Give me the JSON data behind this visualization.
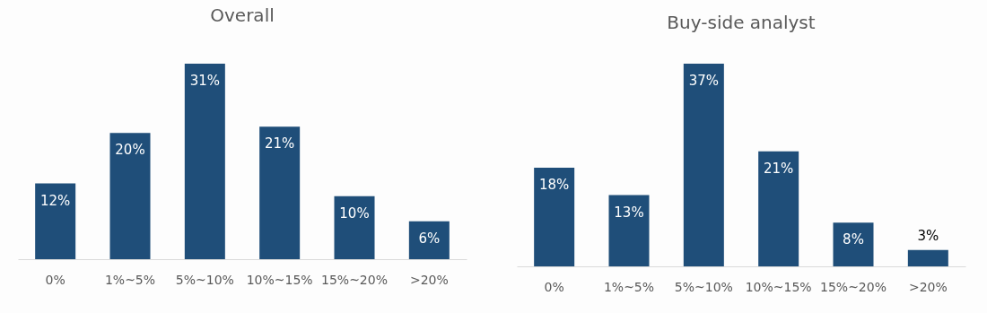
{
  "chart_data": [
    {
      "type": "bar",
      "title": "Overall",
      "categories": [
        "0%",
        "1%~5%",
        "5%~10%",
        "10%~15%",
        "15%~20%",
        ">20%"
      ],
      "values": [
        12,
        20,
        31,
        21,
        10,
        6
      ],
      "color": "#1f4e79",
      "value_labels": [
        "12%",
        "20%",
        "31%",
        "21%",
        "10%",
        "6%"
      ]
    },
    {
      "type": "bar",
      "title": "Buy-side analyst",
      "categories": [
        "0%",
        "1%~5%",
        "5%~10%",
        "10%~15%",
        "15%~20%",
        ">20%"
      ],
      "values": [
        18,
        13,
        37,
        21,
        8,
        3
      ],
      "color": "#1f4e79",
      "value_labels": [
        "18%",
        "13%",
        "37%",
        "21%",
        "8%",
        "3%"
      ]
    }
  ]
}
